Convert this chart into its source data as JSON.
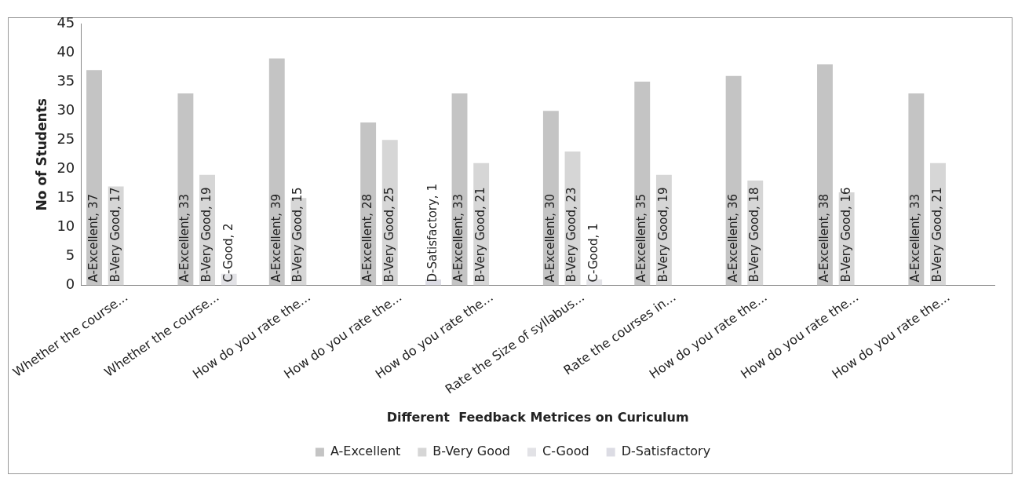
{
  "chart_data": {
    "type": "bar",
    "xlabel": "Different  Feedback Metrices on Curiculum",
    "ylabel": "No of Students",
    "categories": [
      "Whether the course...",
      "Whether the course...",
      "How do you rate the...",
      "How do you rate the...",
      "How do you rate the...",
      "Rate the Size of syllabus...",
      "Rate the courses in...",
      "How do you rate the...",
      "How do you rate the...",
      "How do you rate the..."
    ],
    "series": [
      {
        "name": "A-Excellent",
        "color": "#c4c4c4",
        "values": [
          37,
          33,
          39,
          28,
          33,
          30,
          35,
          36,
          38,
          33
        ],
        "value_labels": [
          "A-Excellent, 37",
          "A-Excellent, 33",
          "A-Excellent, 39",
          "A-Excellent, 28",
          "A-Excellent, 33",
          "A-Excellent, 30",
          "A-Excellent, 35",
          "A-Excellent, 36",
          "A-Excellent, 38",
          "A-Excellent, 33"
        ]
      },
      {
        "name": "B-Very Good",
        "color": "#d6d6d6",
        "values": [
          17,
          19,
          15,
          25,
          21,
          23,
          19,
          18,
          16,
          21
        ],
        "value_labels": [
          "B-Very Good, 17",
          "B-Very Good, 19",
          "B-Very Good, 15",
          "B-Very Good, 25",
          "B-Very Good, 21",
          "B-Very Good, 23",
          "B-Very Good, 19",
          "B-Very Good, 18",
          "B-Very Good, 16",
          "B-Very Good, 21"
        ]
      },
      {
        "name": "C-Good",
        "color": "#e2e2e6",
        "values": [
          null,
          2,
          null,
          null,
          null,
          1,
          null,
          null,
          null,
          null
        ],
        "value_labels": [
          null,
          "C-Good, 2",
          null,
          null,
          null,
          "C-Good, 1",
          null,
          null,
          null,
          null
        ]
      },
      {
        "name": "D-Satisfactory",
        "color": "#dcdce4",
        "values": [
          null,
          null,
          null,
          1,
          null,
          null,
          null,
          null,
          null,
          null
        ],
        "value_labels": [
          null,
          null,
          null,
          "D-Satisfactory, 1",
          null,
          null,
          null,
          null,
          null,
          null
        ]
      }
    ],
    "ylim": [
      0,
      45
    ],
    "yticks": [
      0,
      5,
      10,
      15,
      20,
      25,
      30,
      35,
      40,
      45
    ],
    "grid": false,
    "legend": "bottom"
  }
}
